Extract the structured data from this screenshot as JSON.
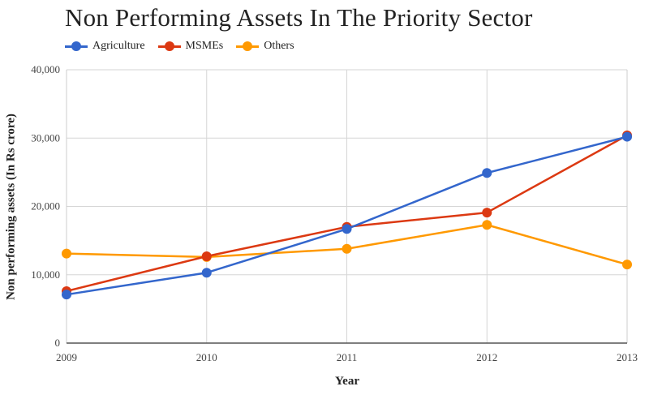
{
  "chart_data": {
    "type": "line",
    "title": "Non Performing Assets In The Priority Sector",
    "xlabel": "Year",
    "ylabel": "Non performing assets (In Rs crore)",
    "x": [
      "2009",
      "2010",
      "2011",
      "2012",
      "2013"
    ],
    "ylim": [
      0,
      40000
    ],
    "yticks": [
      0,
      10000,
      20000,
      30000,
      40000
    ],
    "ytick_labels": [
      "0",
      "10,000",
      "20,000",
      "30,000",
      "40,000"
    ],
    "grid": true,
    "legend_position": "top-left",
    "series": [
      {
        "name": "Agriculture",
        "color": "#3366cc",
        "values": [
          7100,
          10300,
          16700,
          24900,
          30200
        ]
      },
      {
        "name": "MSMEs",
        "color": "#dc3912",
        "values": [
          7600,
          12700,
          17000,
          19100,
          30400
        ]
      },
      {
        "name": "Others",
        "color": "#ff9900",
        "values": [
          13100,
          12600,
          13800,
          17300,
          11500
        ]
      }
    ]
  }
}
